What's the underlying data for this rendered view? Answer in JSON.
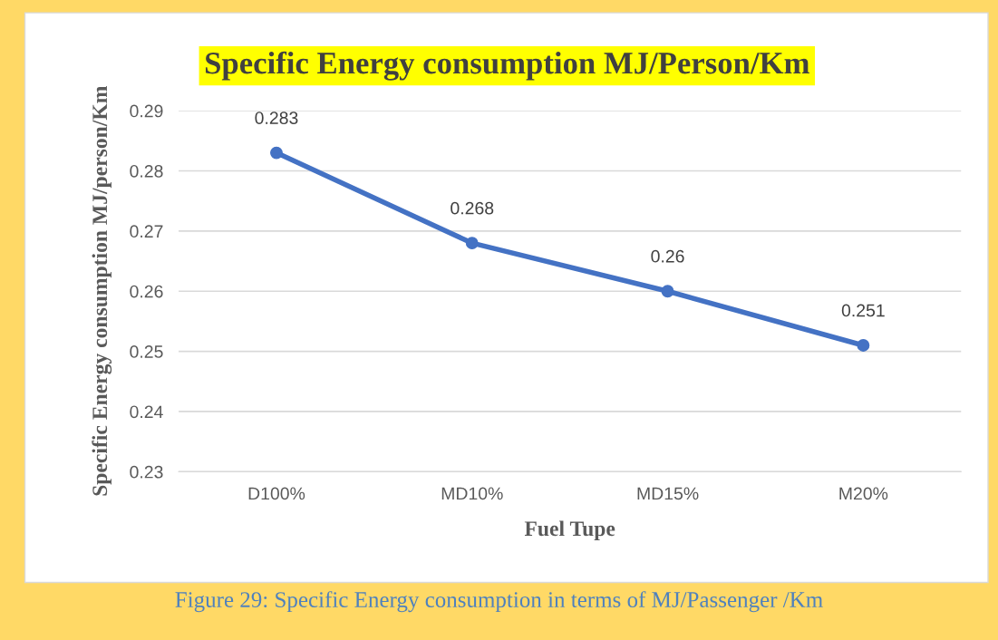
{
  "chart_data": {
    "type": "line",
    "title": "Specific Energy consumption MJ/Person/Km",
    "xlabel": "Fuel Tupe",
    "ylabel": "Specific Energy consumption MJ/person/Km",
    "categories": [
      "D100%",
      "MD10%",
      "MD15%",
      "M20%"
    ],
    "series": [
      {
        "color": "#4472c4",
        "values": [
          0.283,
          0.268,
          0.26,
          0.251
        ]
      }
    ],
    "ylim": [
      0.23,
      0.29
    ],
    "yticks": [
      0.23,
      0.24,
      0.25,
      0.26,
      0.27,
      0.28,
      0.29
    ],
    "grid": "y",
    "marker": "circle",
    "line_style": "solid",
    "data_labels": true,
    "legend": false,
    "annotations": [
      "Figure 29: Specific Energy consumption in terms of MJ/Passenger /Km"
    ]
  }
}
